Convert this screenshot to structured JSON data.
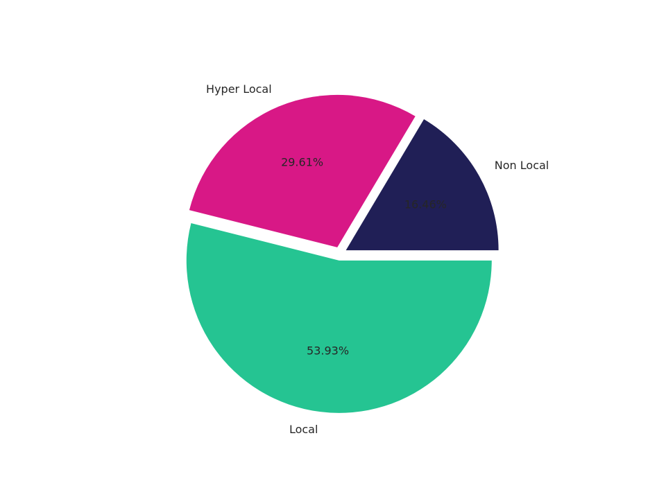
{
  "chart_data": {
    "type": "pie",
    "title": "",
    "legend": "none",
    "start_angle_deg": 0,
    "direction": "counterclockwise",
    "slices": [
      {
        "label": "Non Local",
        "value": 16.46,
        "display": "16.46%",
        "color": "#201f56",
        "exploded": true
      },
      {
        "label": "Hyper Local",
        "value": 29.61,
        "display": "29.61%",
        "color": "#d81886",
        "exploded": true
      },
      {
        "label": "Local",
        "value": 53.93,
        "display": "53.93%",
        "color": "#25c492",
        "exploded": true
      }
    ]
  }
}
